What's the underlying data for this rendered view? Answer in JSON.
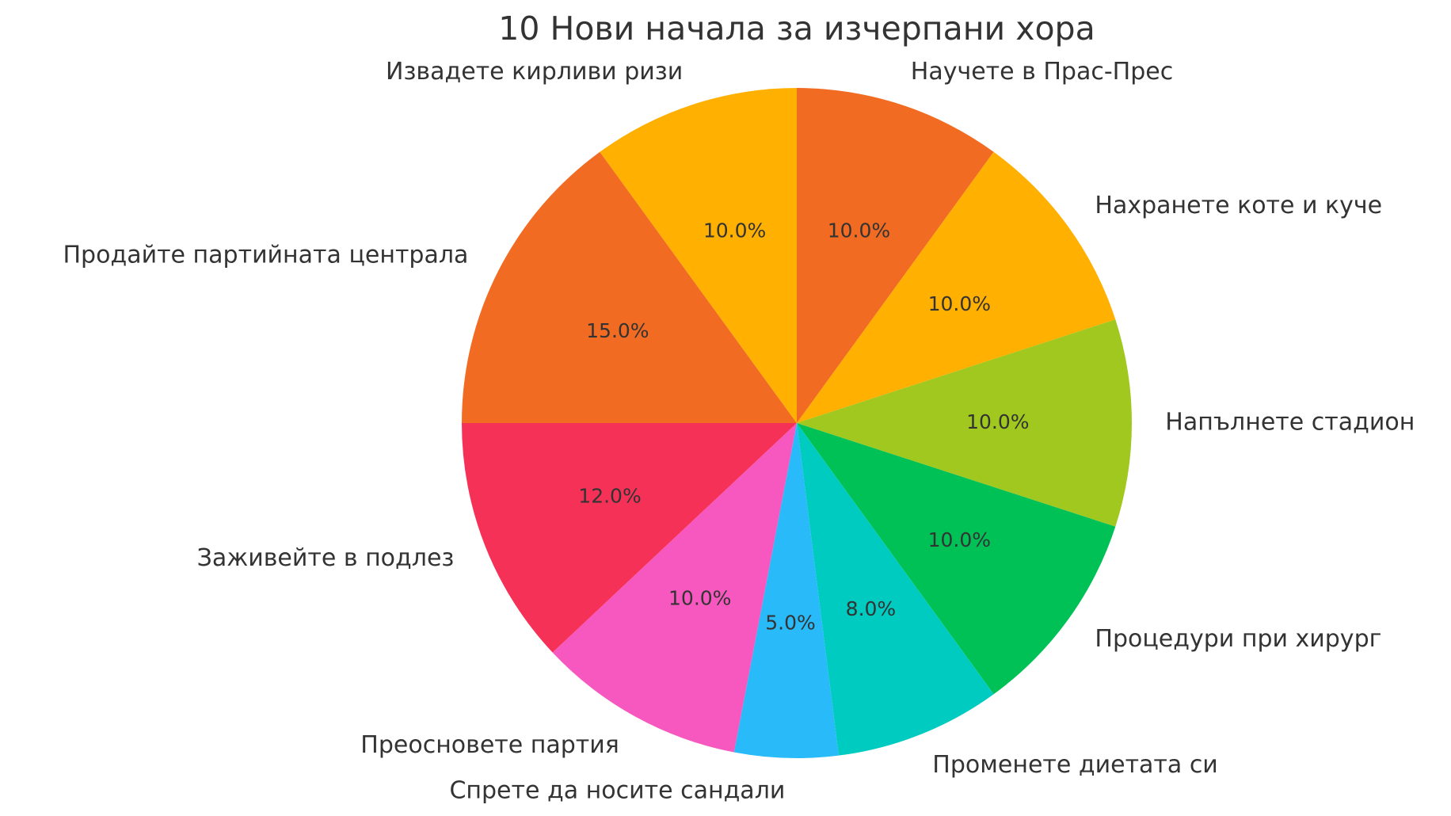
{
  "chart_data": {
    "type": "pie",
    "title": "10 Нови начала за изчерпани хора",
    "categories": [
      "Научете в Прас-Прес",
      "Нахранете коте и куче",
      "Напълнете стадион",
      "Процедури при хирург",
      "Променете диетата си",
      "Спрете да носите сандали",
      "Преосновете партия",
      "Заживейте в подлез",
      "Продайте партийната централа",
      "Извадете кирливи ризи"
    ],
    "values": [
      10,
      10,
      10,
      10,
      8,
      5,
      10,
      12,
      15,
      10
    ],
    "value_labels": [
      "10.0%",
      "10.0%",
      "10.0%",
      "10.0%",
      "8.0%",
      "5.0%",
      "10.0%",
      "12.0%",
      "15.0%",
      "10.0%"
    ],
    "colors": [
      "#f26b22",
      "#ffb000",
      "#a0c81e",
      "#00c155",
      "#00cbc0",
      "#29baf9",
      "#f758bf",
      "#f53157",
      "#f26b22",
      "#ffb000"
    ]
  }
}
